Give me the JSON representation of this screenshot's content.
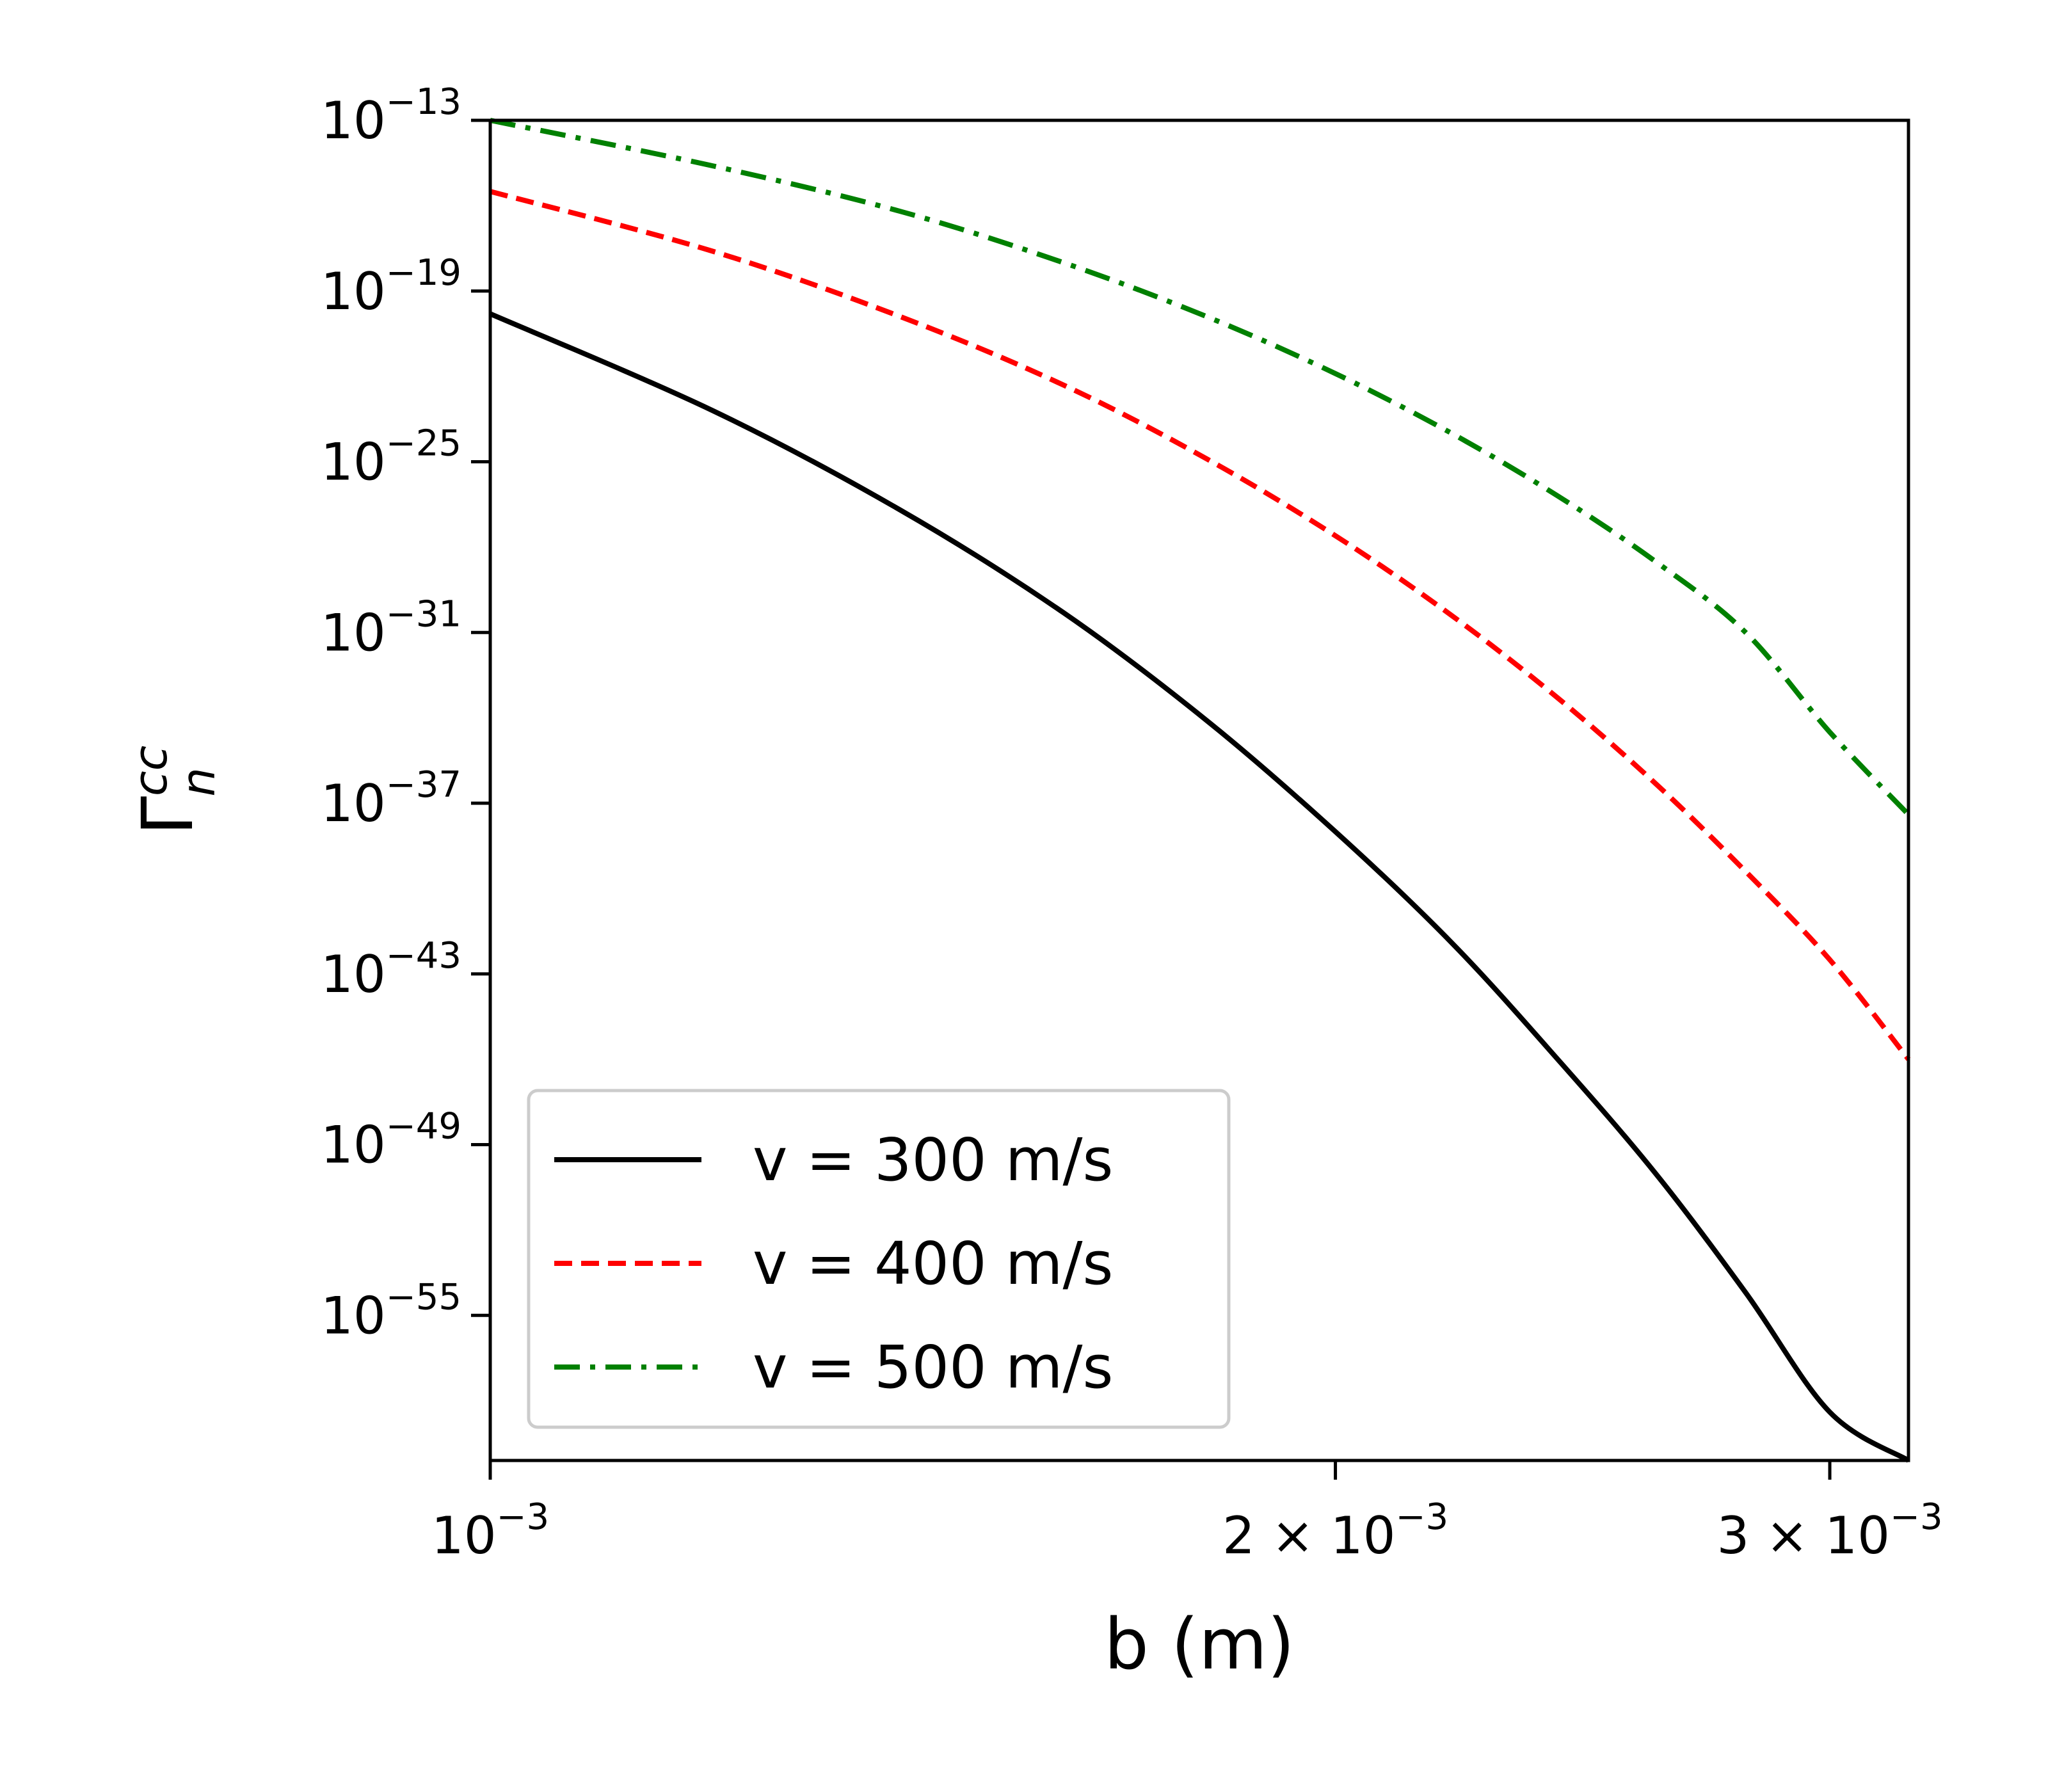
{
  "chart_data": {
    "type": "line",
    "xlabel": "b (m)",
    "ylabel": {
      "base": "Γ",
      "superscript": "cc",
      "subscript": "n"
    },
    "x_scale": "log",
    "y_scale": "log",
    "xlim": [
      0.001,
      0.0032
    ],
    "ylim_log10": [
      -60.1,
      -13
    ],
    "x_ticks": [
      {
        "value": 0.001,
        "mantissa": "",
        "base": "10",
        "exp": "−3"
      },
      {
        "value": 0.002,
        "mantissa": "2 × ",
        "base": "10",
        "exp": "−3"
      },
      {
        "value": 0.003,
        "mantissa": "3 × ",
        "base": "10",
        "exp": "−3"
      }
    ],
    "y_ticks": [
      {
        "log10": -13,
        "base": "10",
        "exp": "−13"
      },
      {
        "log10": -19,
        "base": "10",
        "exp": "−19"
      },
      {
        "log10": -25,
        "base": "10",
        "exp": "−25"
      },
      {
        "log10": -31,
        "base": "10",
        "exp": "−31"
      },
      {
        "log10": -37,
        "base": "10",
        "exp": "−37"
      },
      {
        "log10": -43,
        "base": "10",
        "exp": "−43"
      },
      {
        "log10": -49,
        "base": "10",
        "exp": "−49"
      },
      {
        "log10": -55,
        "base": "10",
        "exp": "−55"
      }
    ],
    "grid": false,
    "legend_position": "lower-left",
    "series": [
      {
        "name": "v = 300 m/s",
        "color": "#000000",
        "style": "solid",
        "x": [
          0.001,
          0.0012,
          0.0014,
          0.0016,
          0.0018,
          0.002,
          0.0022,
          0.0024,
          0.0026,
          0.0028,
          0.003,
          0.0032
        ],
        "y_log10": [
          -19.8,
          -23.2,
          -26.7,
          -30.3,
          -34.1,
          -38.0,
          -41.9,
          -46.0,
          -50.0,
          -54.2,
          -58.4,
          -60.1
        ]
      },
      {
        "name": "v = 400 m/s",
        "color": "#ff0000",
        "style": "dashed",
        "x": [
          0.001,
          0.0012,
          0.0014,
          0.0016,
          0.0018,
          0.002,
          0.0022,
          0.0024,
          0.0026,
          0.0028,
          0.003,
          0.0032
        ],
        "y_log10": [
          -15.5,
          -17.6,
          -19.9,
          -22.3,
          -24.9,
          -27.6,
          -30.4,
          -33.3,
          -36.3,
          -39.4,
          -42.5,
          -46.0
        ]
      },
      {
        "name": "v = 500 m/s",
        "color": "#008000",
        "style": "dashdot",
        "x": [
          0.001,
          0.0012,
          0.0014,
          0.0016,
          0.0018,
          0.002,
          0.0022,
          0.0024,
          0.0026,
          0.0028,
          0.003,
          0.0032
        ],
        "y_log10": [
          -13.0,
          -14.6,
          -16.2,
          -18.0,
          -19.9,
          -21.9,
          -24.0,
          -26.2,
          -28.5,
          -31.0,
          -34.5,
          -37.4
        ]
      }
    ]
  }
}
